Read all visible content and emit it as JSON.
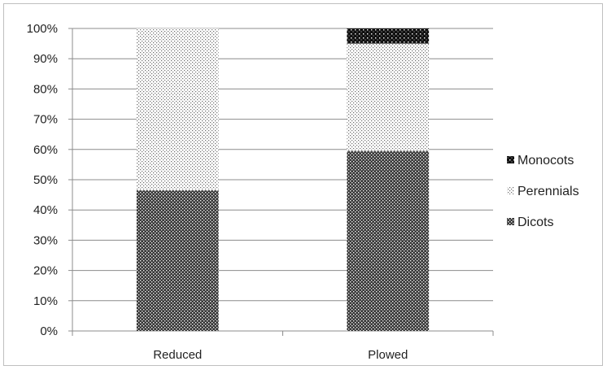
{
  "chart_data": {
    "type": "bar",
    "stacked": true,
    "categories": [
      "Reduced",
      "Plowed"
    ],
    "series": [
      {
        "name": "Dicots",
        "values": [
          46.5,
          59.5
        ],
        "pattern": "dicots-pattern"
      },
      {
        "name": "Perennials",
        "values": [
          53.5,
          35.5
        ],
        "pattern": "perennials-pattern"
      },
      {
        "name": "Monocots",
        "values": [
          0,
          5
        ],
        "pattern": "monocots-pattern"
      }
    ],
    "y_ticks": [
      "0%",
      "10%",
      "20%",
      "30%",
      "40%",
      "50%",
      "60%",
      "70%",
      "80%",
      "90%",
      "100%"
    ],
    "ylim": [
      0,
      100
    ],
    "grid": true,
    "legend_position": "right",
    "legend_order": [
      "Monocots",
      "Perennials",
      "Dicots"
    ],
    "title": "",
    "xlabel": "",
    "ylabel": ""
  }
}
